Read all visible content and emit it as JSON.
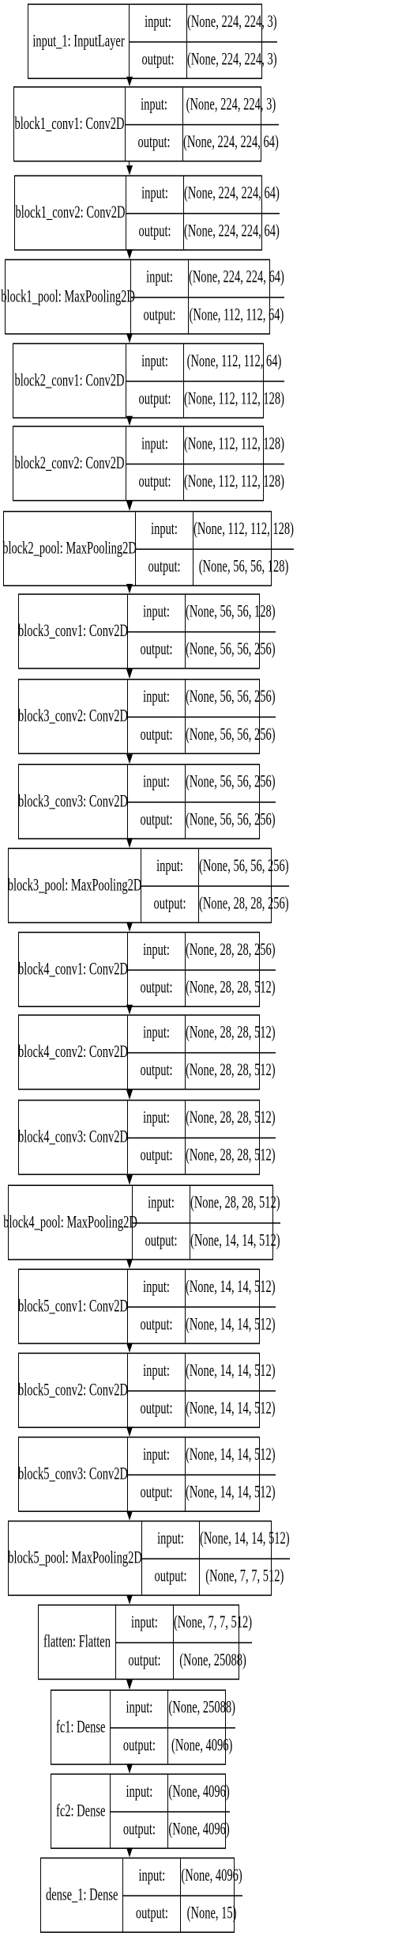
{
  "diagram": {
    "io_labels": {
      "input": "input:",
      "output": "output:"
    },
    "layers": [
      {
        "name": "input_1: InputLayer",
        "input": "(None, 224, 224, 3)",
        "output": "(None, 224, 224, 3)"
      },
      {
        "name": "block1_conv1: Conv2D",
        "input": "(None, 224, 224, 3)",
        "output": "(None, 224, 224, 64)"
      },
      {
        "name": "block1_conv2: Conv2D",
        "input": "(None, 224, 224, 64)",
        "output": "(None, 224, 224, 64)"
      },
      {
        "name": "block1_pool: MaxPooling2D",
        "input": "(None, 224, 224, 64)",
        "output": "(None, 112, 112, 64)"
      },
      {
        "name": "block2_conv1: Conv2D",
        "input": "(None, 112, 112, 64)",
        "output": "(None, 112, 112, 128)"
      },
      {
        "name": "block2_conv2: Conv2D",
        "input": "(None, 112, 112, 128)",
        "output": "(None, 112, 112, 128)"
      },
      {
        "name": "block2_pool: MaxPooling2D",
        "input": "(None, 112, 112, 128)",
        "output": "(None, 56, 56, 128)"
      },
      {
        "name": "block3_conv1: Conv2D",
        "input": "(None, 56, 56, 128)",
        "output": "(None, 56, 56, 256)"
      },
      {
        "name": "block3_conv2: Conv2D",
        "input": "(None, 56, 56, 256)",
        "output": "(None, 56, 56, 256)"
      },
      {
        "name": "block3_conv3: Conv2D",
        "input": "(None, 56, 56, 256)",
        "output": "(None, 56, 56, 256)"
      },
      {
        "name": "block3_pool: MaxPooling2D",
        "input": "(None, 56, 56, 256)",
        "output": "(None, 28, 28, 256)"
      },
      {
        "name": "block4_conv1: Conv2D",
        "input": "(None, 28, 28, 256)",
        "output": "(None, 28, 28, 512)"
      },
      {
        "name": "block4_conv2: Conv2D",
        "input": "(None, 28, 28, 512)",
        "output": "(None, 28, 28, 512)"
      },
      {
        "name": "block4_conv3: Conv2D",
        "input": "(None, 28, 28, 512)",
        "output": "(None, 28, 28, 512)"
      },
      {
        "name": "block4_pool: MaxPooling2D",
        "input": "(None, 28, 28, 512)",
        "output": "(None, 14, 14, 512)"
      },
      {
        "name": "block5_conv1: Conv2D",
        "input": "(None, 14, 14, 512)",
        "output": "(None, 14, 14, 512)"
      },
      {
        "name": "block5_conv2: Conv2D",
        "input": "(None, 14, 14, 512)",
        "output": "(None, 14, 14, 512)"
      },
      {
        "name": "block5_conv3: Conv2D",
        "input": "(None, 14, 14, 512)",
        "output": "(None, 14, 14, 512)"
      },
      {
        "name": "block5_pool: MaxPooling2D",
        "input": "(None, 14, 14, 512)",
        "output": "(None, 7, 7, 512)"
      },
      {
        "name": "flatten: Flatten",
        "input": "(None, 7, 7, 512)",
        "output": "(None, 25088)"
      },
      {
        "name": "fc1: Dense",
        "input": "(None, 25088)",
        "output": "(None, 4096)"
      },
      {
        "name": "fc2: Dense",
        "input": "(None, 4096)",
        "output": "(None, 4096)"
      },
      {
        "name": "dense_1: Dense",
        "input": "(None, 4096)",
        "output": "(None, 15)"
      }
    ]
  }
}
